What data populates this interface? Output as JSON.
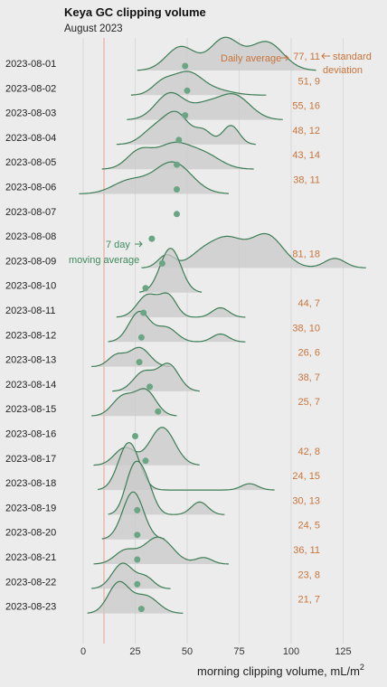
{
  "chart_data": {
    "type": "ridgeline",
    "title": "Keya GC clipping volume",
    "subtitle": "August 2023",
    "xlabel": "morning clipping volume, mL/m",
    "xlabel_sup": "2",
    "xlim": [
      -10,
      135
    ],
    "x_ticks": [
      0,
      25,
      50,
      75,
      100,
      125
    ],
    "reference_line": 10,
    "colors": {
      "ridge_line": "#3c7d56",
      "ridge_fill": "#c9c9c9",
      "moving_average": "#6aa584",
      "stats_text": "#c8743b",
      "reference_line": "#e8a08a",
      "grid": "#d9d9d9"
    },
    "annotations": {
      "daily_average": "Daily average",
      "standard": "standard",
      "deviation": "deviation",
      "seven_day": "7 day",
      "moving_average": "moving average"
    },
    "days": [
      {
        "date": "2023-08-01",
        "mean": 77,
        "sd": 11,
        "moving_avg": 49,
        "peaks": [
          [
            47,
            7,
            0.75
          ],
          [
            68,
            7,
            1.0
          ],
          [
            88,
            8,
            0.9
          ]
        ]
      },
      {
        "date": "2023-08-02",
        "mean": 51,
        "sd": 9,
        "moving_avg": 50,
        "peaks": [
          [
            38,
            5,
            0.35
          ],
          [
            50,
            7,
            0.7
          ],
          [
            64,
            8,
            0.15
          ]
        ]
      },
      {
        "date": "2023-08-03",
        "mean": 55,
        "sd": 16,
        "moving_avg": 49,
        "peaks": [
          [
            42,
            7,
            0.85
          ],
          [
            58,
            6,
            0.35
          ],
          [
            72,
            8,
            0.8
          ]
        ]
      },
      {
        "date": "2023-08-04",
        "mean": 48,
        "sd": 12,
        "moving_avg": 46,
        "peaks": [
          [
            34,
            6,
            0.45
          ],
          [
            45,
            6,
            0.95
          ],
          [
            58,
            4,
            0.4
          ],
          [
            71,
            4,
            0.6
          ]
        ]
      },
      {
        "date": "2023-08-05",
        "mean": 43,
        "sd": 14,
        "moving_avg": 45,
        "peaks": [
          [
            27,
            6,
            0.55
          ],
          [
            43,
            8,
            0.75
          ],
          [
            58,
            8,
            0.45
          ]
        ]
      },
      {
        "date": "2023-08-06",
        "mean": 38,
        "sd": 11,
        "moving_avg": 45,
        "peaks": [
          [
            22,
            8,
            0.4
          ],
          [
            43,
            9,
            1.0
          ]
        ]
      },
      {
        "date": "2023-08-07",
        "mean": null,
        "sd": null,
        "moving_avg": 45,
        "peaks": []
      },
      {
        "date": "2023-08-08",
        "mean": null,
        "sd": null,
        "moving_avg": 33,
        "peaks": []
      },
      {
        "date": "2023-08-09",
        "mean": 81,
        "sd": 18,
        "moving_avg": 38,
        "peaks": [
          [
            40,
            4,
            0.4
          ],
          [
            58,
            7,
            0.5
          ],
          [
            70,
            7,
            0.8
          ],
          [
            88,
            8,
            1.05
          ],
          [
            121,
            5,
            0.3
          ]
        ]
      },
      {
        "date": "2023-08-10",
        "mean": null,
        "sd": null,
        "moving_avg": 30,
        "peaks": [
          [
            42,
            5,
            1.4
          ]
        ]
      },
      {
        "date": "2023-08-11",
        "mean": 44,
        "sd": 7,
        "moving_avg": 29,
        "peaks": [
          [
            31,
            5,
            0.7
          ],
          [
            41,
            4,
            0.65
          ],
          [
            66,
            4,
            0.3
          ]
        ]
      },
      {
        "date": "2023-08-12",
        "mean": 38,
        "sd": 10,
        "moving_avg": 28,
        "peaks": [
          [
            27,
            5,
            0.95
          ],
          [
            40,
            5,
            0.45
          ],
          [
            66,
            4,
            0.25
          ]
        ]
      },
      {
        "date": "2023-08-13",
        "mean": 26,
        "sd": 6,
        "moving_avg": 27,
        "peaks": [
          [
            16,
            4,
            0.35
          ],
          [
            27,
            5,
            0.6
          ]
        ]
      },
      {
        "date": "2023-08-14",
        "mean": 38,
        "sd": 7,
        "moving_avg": 32,
        "peaks": [
          [
            29,
            5,
            0.6
          ],
          [
            41,
            5,
            0.85
          ]
        ]
      },
      {
        "date": "2023-08-15",
        "mean": 25,
        "sd": 7,
        "moving_avg": 36,
        "peaks": [
          [
            19,
            5,
            0.6
          ],
          [
            30,
            5,
            0.8
          ]
        ]
      },
      {
        "date": "2023-08-16",
        "mean": null,
        "sd": null,
        "moving_avg": 25,
        "peaks": []
      },
      {
        "date": "2023-08-17",
        "mean": 42,
        "sd": 8,
        "moving_avg": 30,
        "peaks": [
          [
            20,
            5,
            0.55
          ],
          [
            38,
            6,
            1.2
          ]
        ]
      },
      {
        "date": "2023-08-18",
        "mean": 24,
        "sd": 15,
        "moving_avg": null,
        "peaks": [
          [
            22,
            5,
            1.5
          ],
          [
            80,
            4,
            0.2
          ]
        ]
      },
      {
        "date": "2023-08-19",
        "mean": 30,
        "sd": 13,
        "moving_avg": 26,
        "peaks": [
          [
            24,
            4,
            1.3
          ],
          [
            30,
            4,
            0.9
          ],
          [
            56,
            4,
            0.4
          ]
        ]
      },
      {
        "date": "2023-08-20",
        "mean": 24,
        "sd": 5,
        "moving_avg": 26,
        "peaks": [
          [
            24,
            5,
            1.5
          ]
        ]
      },
      {
        "date": "2023-08-21",
        "mean": 36,
        "sd": 11,
        "moving_avg": 26,
        "peaks": [
          [
            20,
            5,
            0.4
          ],
          [
            36,
            7,
            0.85
          ],
          [
            58,
            4,
            0.2
          ]
        ]
      },
      {
        "date": "2023-08-22",
        "mean": 23,
        "sd": 8,
        "moving_avg": 26,
        "peaks": [
          [
            19,
            5,
            0.8
          ],
          [
            30,
            4,
            0.35
          ]
        ]
      },
      {
        "date": "2023-08-23",
        "mean": 21,
        "sd": 7,
        "moving_avg": 28,
        "peaks": [
          [
            17,
            5,
            0.95
          ],
          [
            30,
            6,
            0.55
          ]
        ]
      }
    ]
  }
}
